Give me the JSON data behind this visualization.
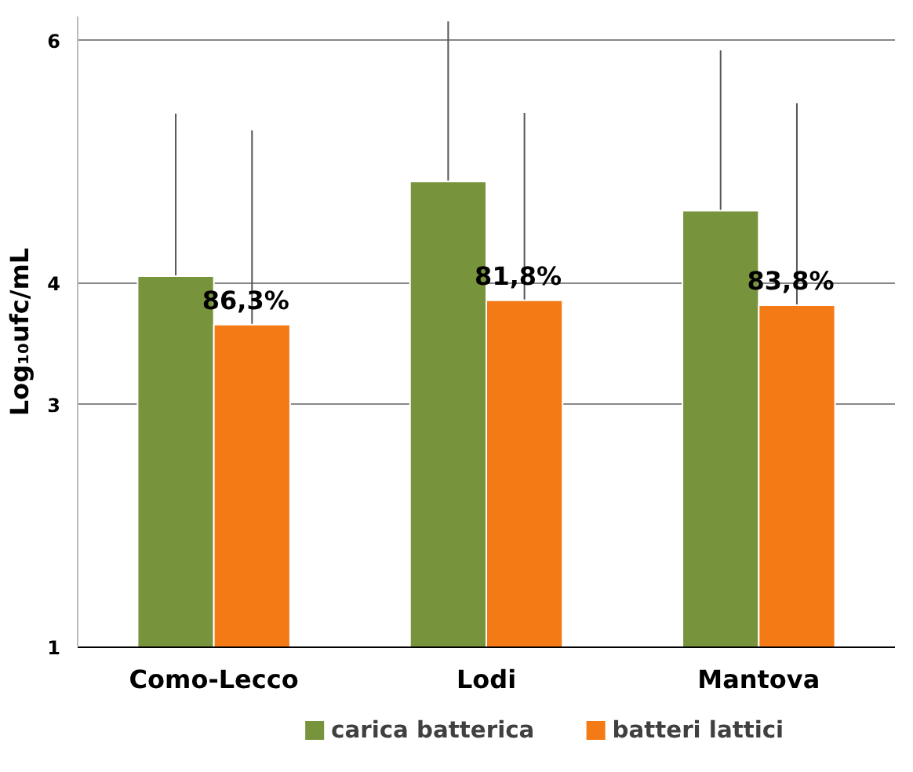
{
  "chart_data": {
    "type": "bar",
    "ylabel": "Log₁₀ufc/mL",
    "categories": [
      "Como-Lecco",
      "Lodi",
      "Mantova"
    ],
    "series": [
      {
        "name": "carica batterica",
        "color": "#77933c",
        "values": [
          4.06,
          4.84,
          4.6
        ],
        "errors": [
          1.34,
          1.32,
          1.32
        ]
      },
      {
        "name": "batteri lattici",
        "color": "#f37a14",
        "values": [
          3.66,
          3.86,
          3.82
        ],
        "errors": [
          1.6,
          1.545,
          1.665
        ]
      }
    ],
    "annotations": [
      {
        "text": "86,3%",
        "x": "Como-Lecco",
        "y": 3.66
      },
      {
        "text": "81,8%",
        "x": "Lodi",
        "y": 3.86
      },
      {
        "text": "83,8%",
        "x": "Mantova",
        "y": 3.82
      }
    ],
    "ylim": [
      1,
      6.2
    ],
    "yticks": [
      1,
      3,
      4,
      6
    ],
    "grid": "y",
    "legend": "bottom"
  }
}
